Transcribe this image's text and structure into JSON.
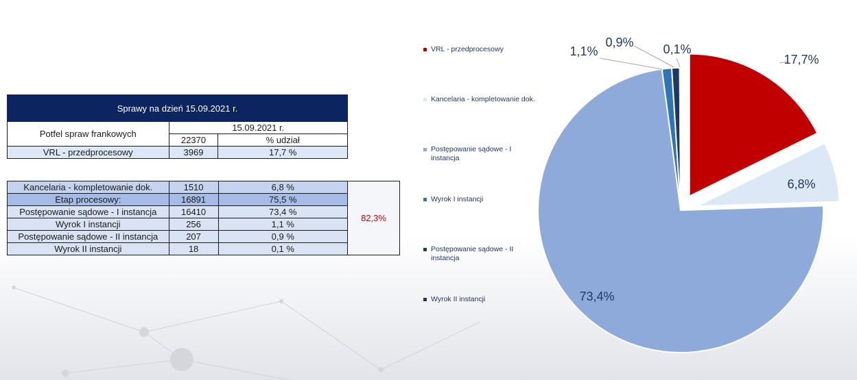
{
  "table": {
    "title": "Sprawy na dzień 15.09.2021 r.",
    "portfolio_label": "Potfel spraw frankowych",
    "date_header": "15.09.2021 r.",
    "total": "22370",
    "share_header": "% udział",
    "rows_top": [
      {
        "label": "VRL - przedprocesowy",
        "count": "3969",
        "pct": "17,7 %"
      }
    ],
    "rows_bottom": [
      {
        "label": "Kancelaria - kompletowanie dok.",
        "count": "1510",
        "pct": "6,8 %"
      },
      {
        "label": "Etap procesowy:",
        "count": "16891",
        "pct": "75,5 %"
      },
      {
        "label": "Postępowanie sądowe - I instancja",
        "count": "16410",
        "pct": "73,4 %"
      },
      {
        "label": "Wyrok I instancji",
        "count": "256",
        "pct": "1,1 %"
      },
      {
        "label": "Postępowanie sądowe - II instancja",
        "count": "207",
        "pct": "0,9 %"
      },
      {
        "label": "Wyrok II instancji",
        "count": "18",
        "pct": "0,1 %"
      }
    ],
    "merged_pct": "82,3%"
  },
  "legend": [
    {
      "label": "VRL - przedprocesowy",
      "color": "#c00000"
    },
    {
      "label": "Kancelaria - kompletowanie dok.",
      "color": "#dde8f6"
    },
    {
      "label": "Postępowanie sądowe - I instancja",
      "color": "#8eaadb"
    },
    {
      "label": "Wyrok I instancji",
      "color": "#2e75b6"
    },
    {
      "label": "Postępowanie sądowe - II instancja",
      "color": "#1f3864"
    },
    {
      "label": "Wyrok II instancji",
      "color": "#203864"
    }
  ],
  "chart_data": {
    "type": "pie",
    "title": "",
    "categories": [
      "VRL - przedprocesowy",
      "Kancelaria - kompletowanie dok.",
      "Postępowanie sądowe - I instancja",
      "Wyrok I instancji",
      "Postępowanie sądowe - II instancja",
      "Wyrok II instancji"
    ],
    "values": [
      17.7,
      6.8,
      73.4,
      1.1,
      0.9,
      0.1
    ],
    "labels": [
      "17,7%",
      "6,8%",
      "73,4%",
      "1,1%",
      "0,9%",
      "0,1%"
    ],
    "colors": [
      "#c00000",
      "#dde8f6",
      "#8eaadb",
      "#2e75b6",
      "#1f3864",
      "#203864"
    ],
    "exploded": [
      true,
      true,
      false,
      false,
      false,
      false
    ],
    "legend_position": "left"
  }
}
